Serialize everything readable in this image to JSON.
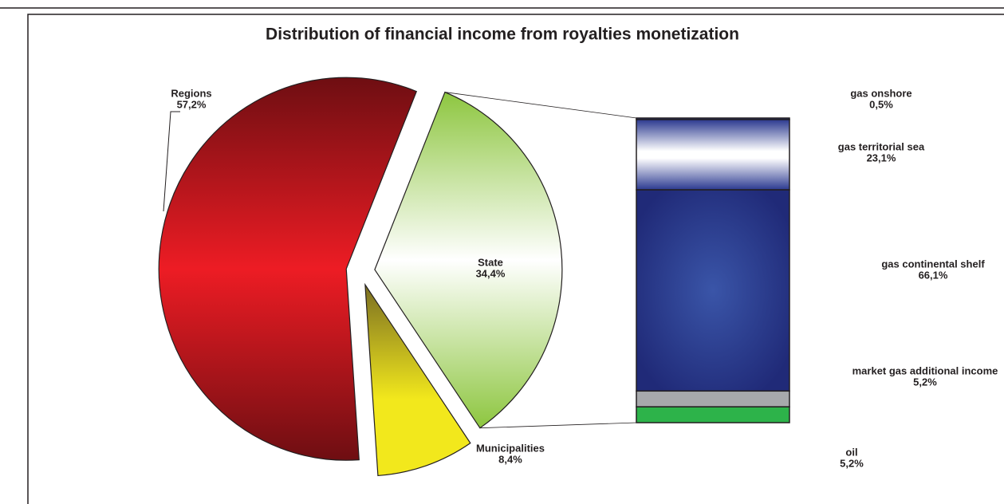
{
  "chart_data": [
    {
      "type": "pie",
      "title": "Distribution of financial income from royalties monetization",
      "categories": [
        "State",
        "Municipalities",
        "Regions"
      ],
      "values": [
        34.4,
        8.4,
        57.2
      ],
      "value_labels": [
        "34,4%",
        "8,4%",
        "57,2%"
      ],
      "colors": [
        "#8dc63f",
        "#f2e81c",
        "#ed1c24"
      ]
    },
    {
      "type": "bar",
      "stacked": true,
      "categories": [
        "gas onshore",
        "gas territorial sea",
        "gas continental shelf",
        "market gas additional income",
        "oil"
      ],
      "values": [
        0.5,
        23.1,
        66.1,
        5.2,
        5.2
      ],
      "value_labels": [
        "0,5%",
        "23,1%",
        "66,1%",
        "5,2%",
        "5,2%"
      ],
      "colors": [
        "#2b3990",
        "#ffffff",
        "#2b3990",
        "#a7a9ac",
        "#2db34a"
      ]
    }
  ]
}
